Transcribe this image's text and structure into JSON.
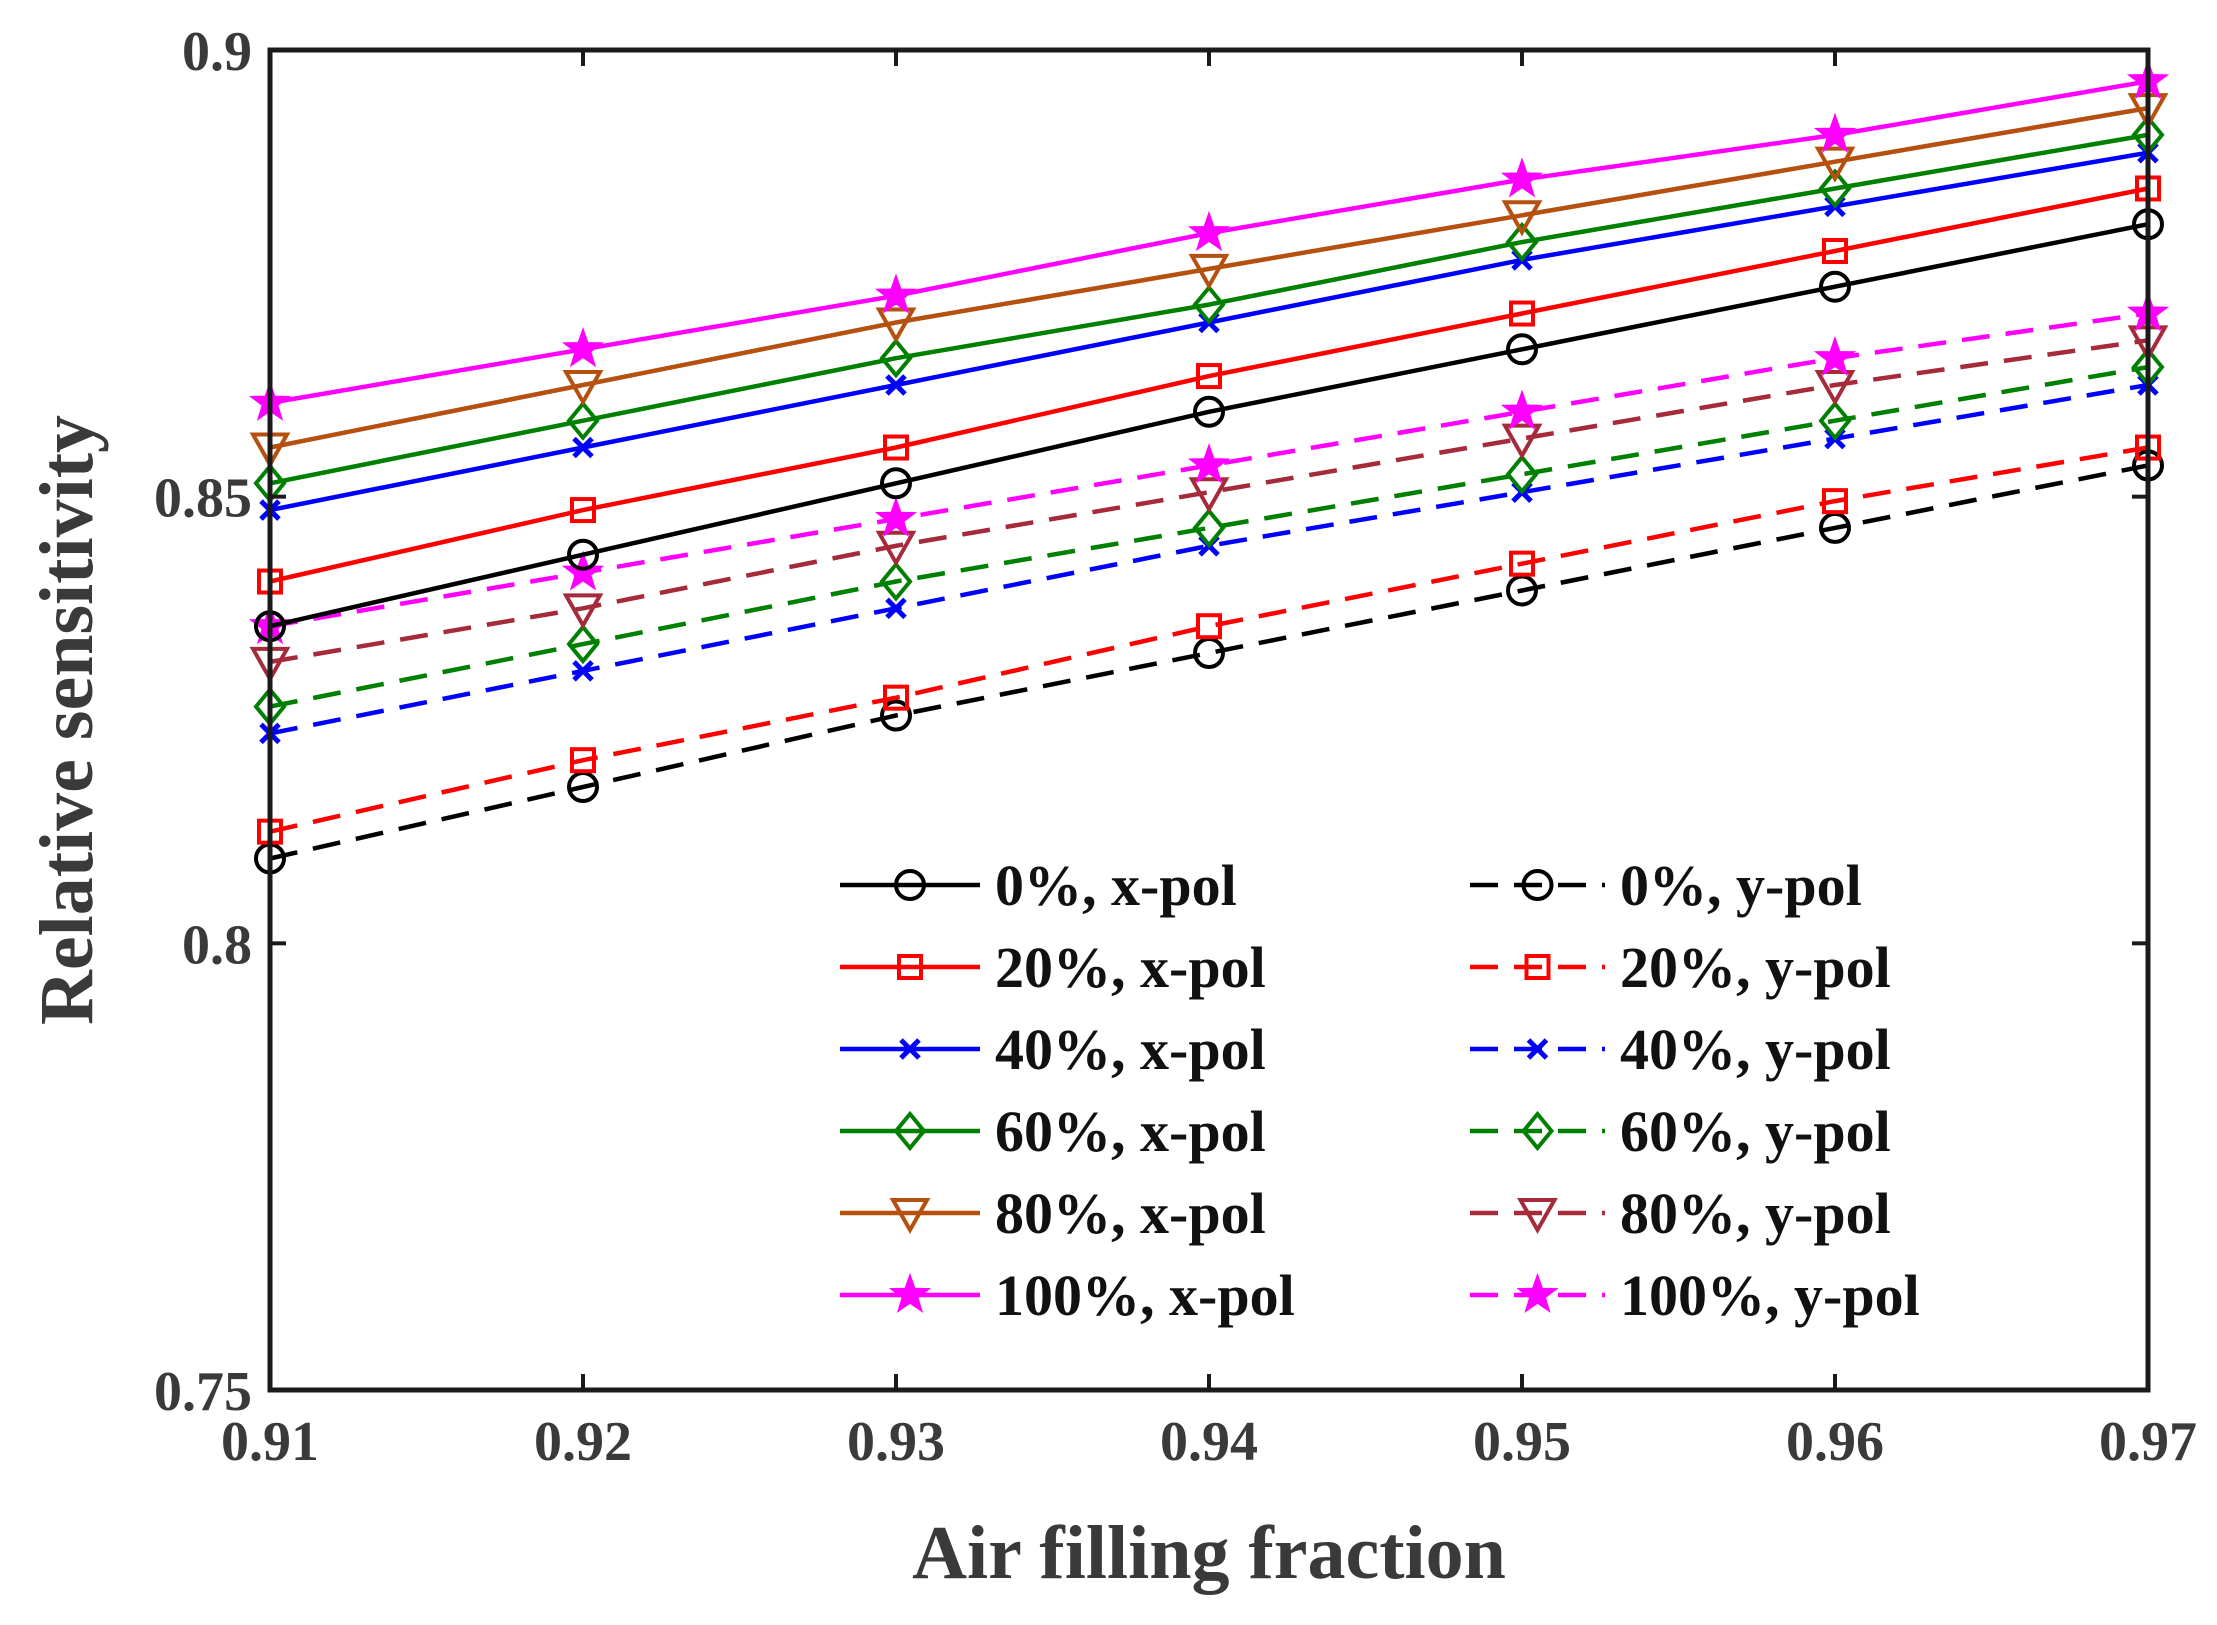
{
  "chart_data": {
    "type": "line",
    "xlabel": "Air filling fraction",
    "ylabel": "Relative sensitivity",
    "x": [
      0.91,
      0.92,
      0.93,
      0.94,
      0.95,
      0.96,
      0.97
    ],
    "xlim": [
      0.91,
      0.97
    ],
    "ylim": [
      0.75,
      0.9
    ],
    "xticks": [
      "0.91",
      "0.92",
      "0.93",
      "0.94",
      "0.95",
      "0.96",
      "0.97"
    ],
    "yticks": [
      "0.75",
      "0.8",
      "0.85",
      "0.9"
    ],
    "ytick_values": [
      0.75,
      0.8,
      0.85,
      0.9
    ],
    "grid": false,
    "legend_position": "lower-right, two columns",
    "series": [
      {
        "name": "0%, x-pol",
        "color": "#000000",
        "dash": "solid",
        "marker": "circle",
        "values": [
          0.8355,
          0.8435,
          0.8515,
          0.8595,
          0.8665,
          0.8735,
          0.8805
        ]
      },
      {
        "name": "20%, x-pol",
        "color": "#ff0000",
        "dash": "solid",
        "marker": "square",
        "values": [
          0.8405,
          0.8485,
          0.8555,
          0.8635,
          0.8705,
          0.8775,
          0.8845
        ]
      },
      {
        "name": "40%, x-pol",
        "color": "#0000ff",
        "dash": "solid",
        "marker": "x",
        "values": [
          0.8485,
          0.8555,
          0.8625,
          0.8695,
          0.8765,
          0.8825,
          0.8885
        ]
      },
      {
        "name": "60%, x-pol",
        "color": "#008000",
        "dash": "solid",
        "marker": "diamond",
        "values": [
          0.8515,
          0.8585,
          0.8655,
          0.8715,
          0.8785,
          0.8845,
          0.8905
        ]
      },
      {
        "name": "80%, x-pol",
        "color": "#b5500f",
        "dash": "solid",
        "marker": "triangle-down",
        "values": [
          0.8555,
          0.8625,
          0.8695,
          0.8755,
          0.8815,
          0.8875,
          0.8935
        ]
      },
      {
        "name": "100%, x-pol",
        "color": "#ff00ff",
        "dash": "solid",
        "marker": "star",
        "values": [
          0.8605,
          0.8665,
          0.8725,
          0.8795,
          0.8855,
          0.8905,
          0.8965
        ]
      },
      {
        "name": "0%, y-pol",
        "color": "#000000",
        "dash": "dashed",
        "marker": "circle",
        "values": [
          0.8095,
          0.8175,
          0.8255,
          0.8325,
          0.8395,
          0.8465,
          0.8535
        ]
      },
      {
        "name": "20%, y-pol",
        "color": "#ff0000",
        "dash": "dashed",
        "marker": "square",
        "values": [
          0.8125,
          0.8205,
          0.8275,
          0.8355,
          0.8425,
          0.8495,
          0.8555
        ]
      },
      {
        "name": "40%, y-pol",
        "color": "#0000ff",
        "dash": "dashed",
        "marker": "x",
        "values": [
          0.8235,
          0.8305,
          0.8375,
          0.8445,
          0.8505,
          0.8565,
          0.8625
        ]
      },
      {
        "name": "60%, y-pol",
        "color": "#008000",
        "dash": "dashed",
        "marker": "diamond",
        "values": [
          0.8265,
          0.8335,
          0.8405,
          0.8465,
          0.8525,
          0.8585,
          0.8645
        ]
      },
      {
        "name": "80%, y-pol",
        "color": "#a52a3a",
        "dash": "dashed",
        "marker": "triangle-down",
        "values": [
          0.8315,
          0.8375,
          0.8445,
          0.8505,
          0.8565,
          0.8625,
          0.8675
        ]
      },
      {
        "name": "100%, y-pol",
        "color": "#ff00ff",
        "dash": "dashed",
        "marker": "star",
        "values": [
          0.8355,
          0.8415,
          0.8475,
          0.8535,
          0.8595,
          0.8655,
          0.8705
        ]
      }
    ]
  }
}
